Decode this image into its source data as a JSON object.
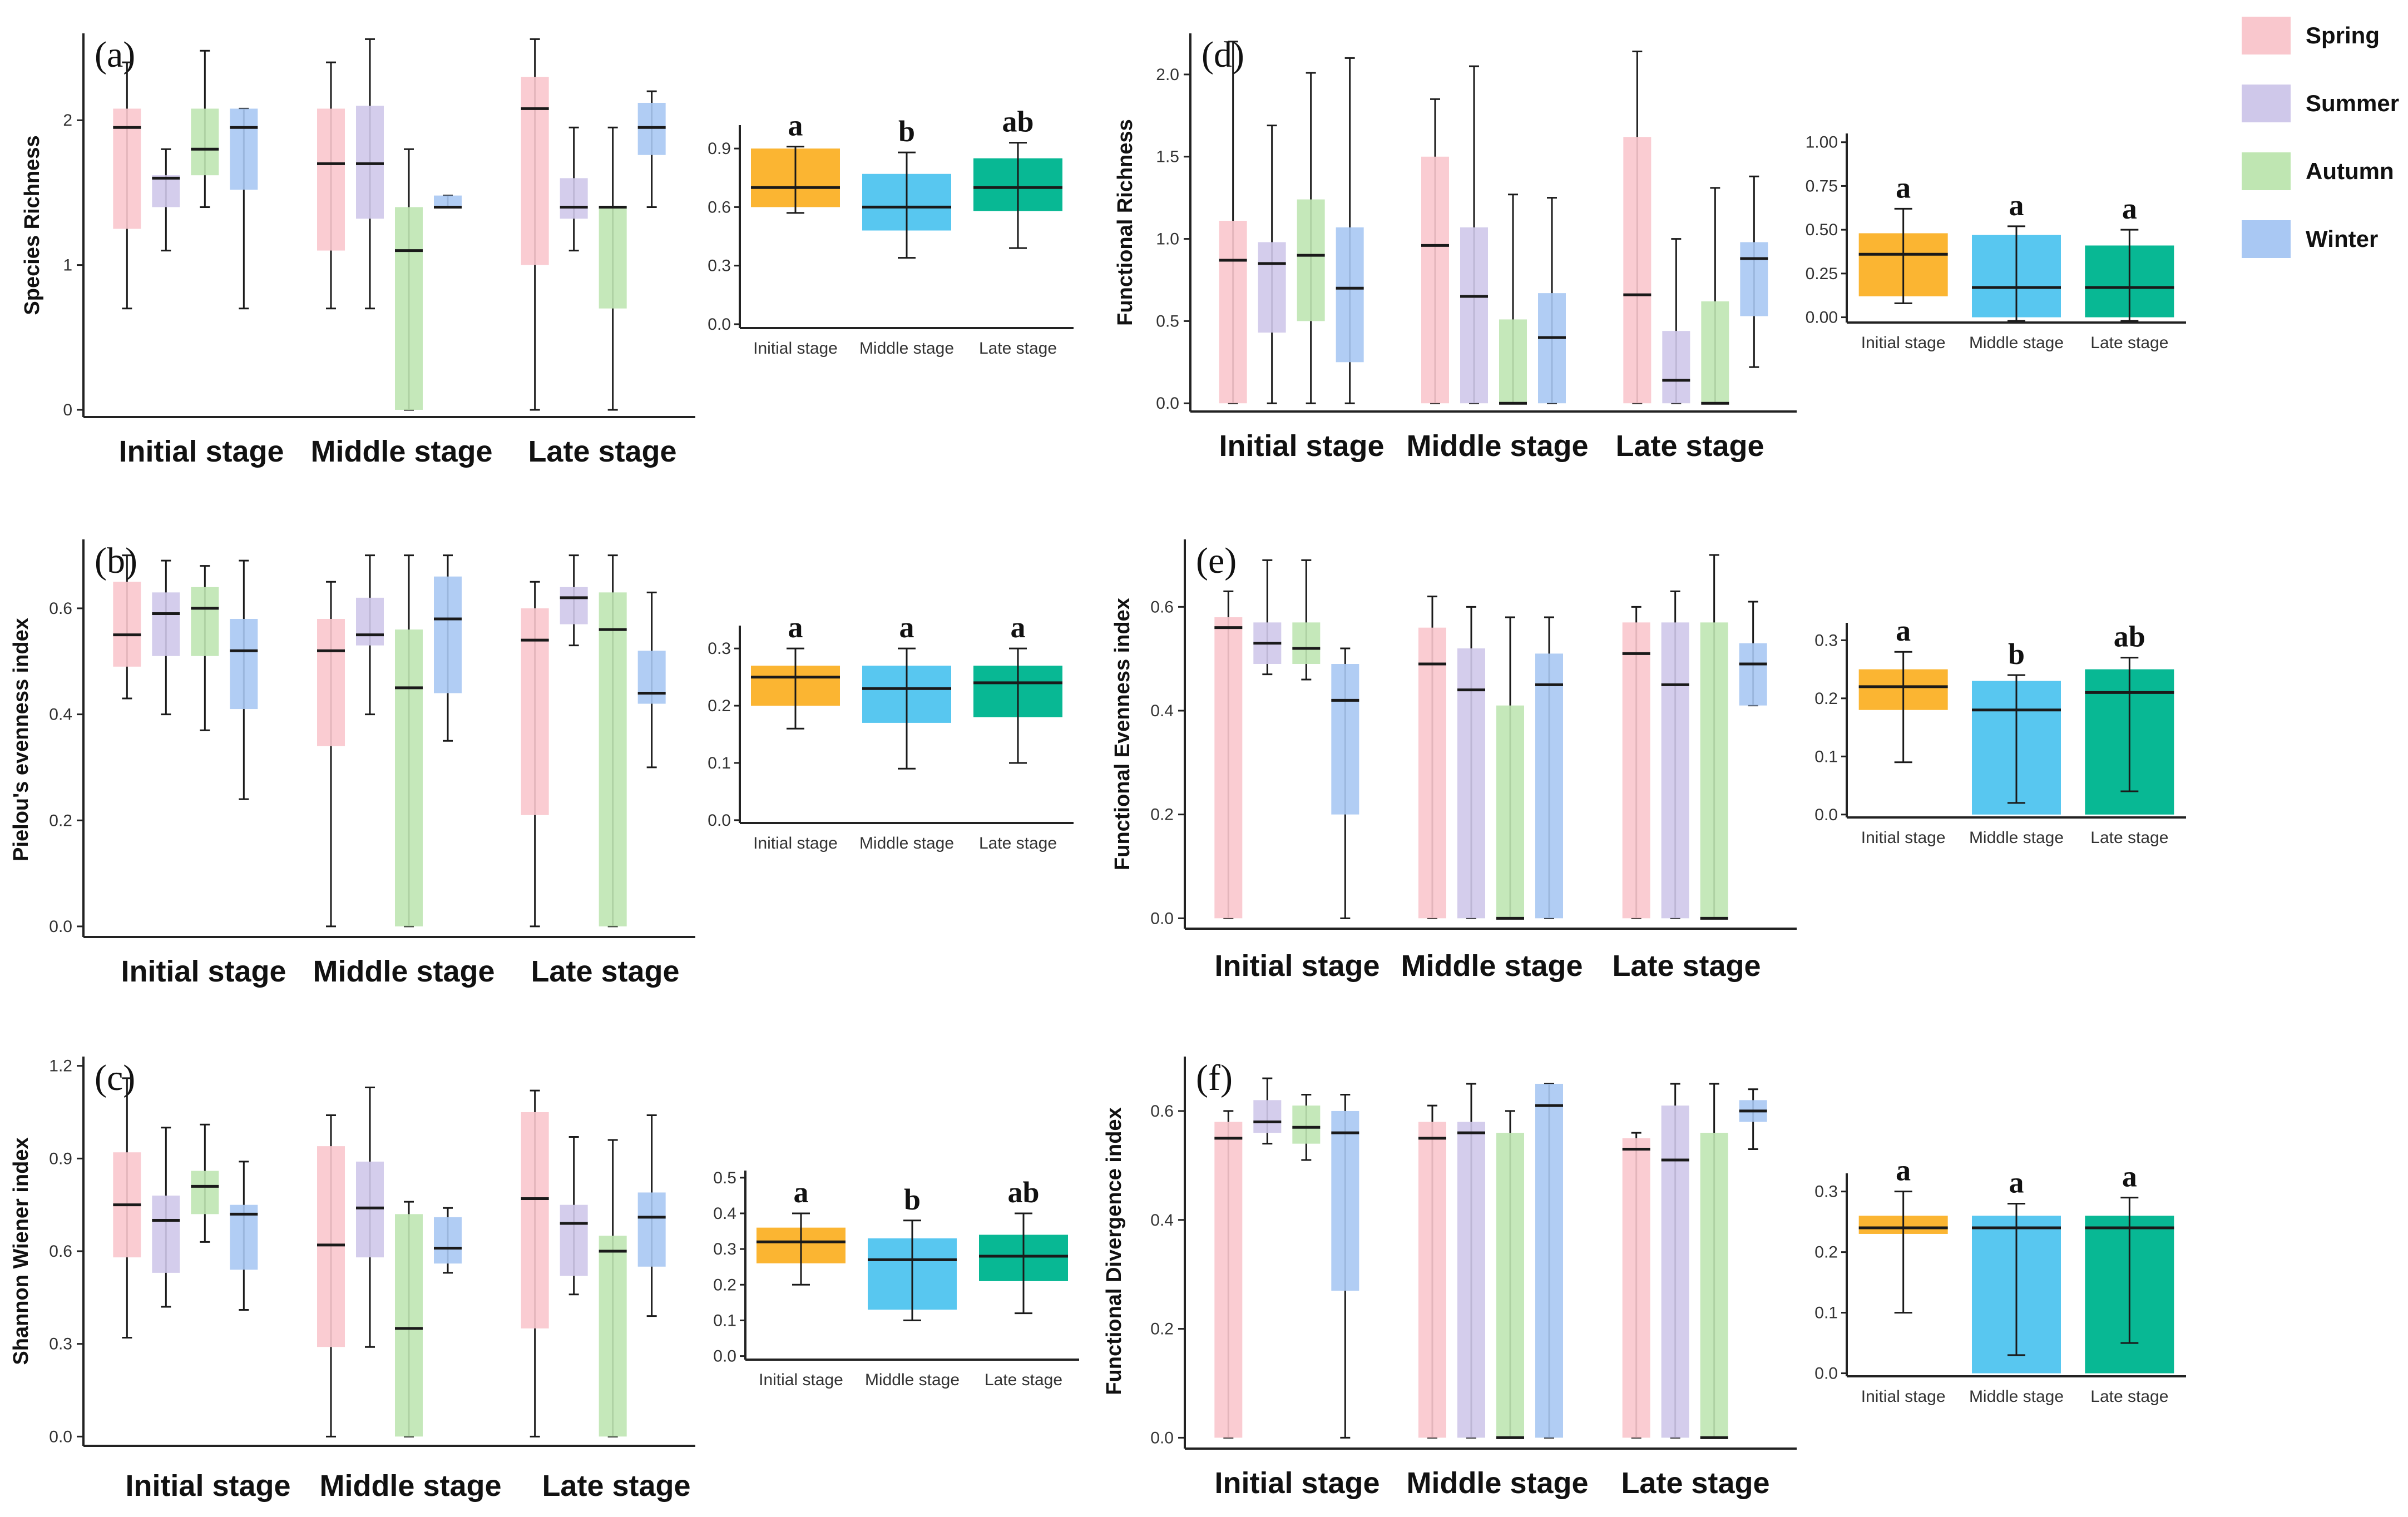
{
  "colors": {
    "seasons": {
      "Spring": "#f9c7cd",
      "Summer": "#cfc8ea",
      "Autumn": "#bfe6b2",
      "Winter": "#a9c8f3"
    },
    "stages": {
      "Initial stage": "#fbb532",
      "Middle stage": "#58c7f0",
      "Late stage": "#08b894"
    }
  },
  "legend": {
    "items": [
      "Spring",
      "Summer",
      "Autumn",
      "Winter"
    ]
  },
  "chart_data": [
    {
      "id": "a",
      "type": "box",
      "letter": "(a)",
      "ylabel": "Species Richness",
      "categories": [
        "Initial stage",
        "Middle stage",
        "Late stage"
      ],
      "series_names": [
        "Spring",
        "Summer",
        "Autumn",
        "Winter"
      ],
      "ylim": [
        -0.05,
        2.6
      ],
      "yticks": [
        0,
        1,
        2
      ],
      "boxes": [
        [
          [
            0.7,
            1.25,
            1.95,
            2.08,
            2.4
          ],
          [
            1.1,
            1.4,
            1.6,
            1.62,
            1.8
          ],
          [
            1.4,
            1.62,
            1.8,
            2.08,
            2.48
          ],
          [
            0.7,
            1.52,
            1.95,
            2.08,
            2.08
          ]
        ],
        [
          [
            0.7,
            1.1,
            1.7,
            2.08,
            2.4
          ],
          [
            0.7,
            1.32,
            1.7,
            2.1,
            2.56
          ],
          [
            0,
            0,
            1.1,
            1.4,
            1.8
          ],
          [
            1.4,
            1.4,
            1.4,
            1.48,
            1.48
          ]
        ],
        [
          [
            0,
            1.0,
            2.08,
            2.3,
            2.56
          ],
          [
            1.1,
            1.32,
            1.4,
            1.6,
            1.95
          ],
          [
            0,
            0.7,
            1.4,
            1.4,
            1.95
          ],
          [
            1.4,
            1.76,
            1.95,
            2.12,
            2.2
          ]
        ]
      ],
      "inset": {
        "categories": [
          "Initial stage",
          "Middle stage",
          "Late stage"
        ],
        "ylim": [
          -0.02,
          1.02
        ],
        "yticks": [
          0.0,
          0.3,
          0.6,
          0.9
        ],
        "ytick_labels": [
          "0.0",
          "0.3",
          "0.6",
          "0.9"
        ],
        "bars": [
          [
            0.57,
            0.6,
            0.7,
            0.9,
            0.91
          ],
          [
            0.34,
            0.48,
            0.6,
            0.77,
            0.88
          ],
          [
            0.39,
            0.58,
            0.7,
            0.85,
            0.93
          ]
        ],
        "letters": [
          "a",
          "b",
          "ab"
        ]
      }
    },
    {
      "id": "b",
      "type": "box",
      "letter": "(b)",
      "ylabel": "Pielou's evenness index",
      "categories": [
        "Initial stage",
        "Middle stage",
        "Late stage"
      ],
      "series_names": [
        "Spring",
        "Summer",
        "Autumn",
        "Winter"
      ],
      "ylim": [
        -0.02,
        0.73
      ],
      "yticks": [
        0.0,
        0.2,
        0.4,
        0.6
      ],
      "ytick_labels": [
        "0.0",
        "0.2",
        "0.4",
        "0.6"
      ],
      "boxes": [
        [
          [
            0.43,
            0.49,
            0.55,
            0.65,
            0.7
          ],
          [
            0.4,
            0.51,
            0.59,
            0.63,
            0.69
          ],
          [
            0.37,
            0.51,
            0.6,
            0.64,
            0.68
          ],
          [
            0.24,
            0.41,
            0.52,
            0.58,
            0.69
          ]
        ],
        [
          [
            0,
            0.34,
            0.52,
            0.58,
            0.65
          ],
          [
            0.4,
            0.53,
            0.55,
            0.62,
            0.7
          ],
          [
            0,
            0,
            0.45,
            0.56,
            0.7
          ],
          [
            0.35,
            0.44,
            0.58,
            0.66,
            0.7
          ]
        ],
        [
          [
            0,
            0.21,
            0.54,
            0.6,
            0.65
          ],
          [
            0.53,
            0.57,
            0.62,
            0.64,
            0.7
          ],
          [
            0,
            0,
            0.56,
            0.63,
            0.7
          ],
          [
            0.3,
            0.42,
            0.44,
            0.52,
            0.63
          ]
        ]
      ],
      "inset": {
        "categories": [
          "Initial stage",
          "Middle stage",
          "Late stage"
        ],
        "ylim": [
          -0.005,
          0.34
        ],
        "yticks": [
          0.0,
          0.1,
          0.2,
          0.3
        ],
        "ytick_labels": [
          "0.0",
          "0.1",
          "0.2",
          "0.3"
        ],
        "bars": [
          [
            0.16,
            0.2,
            0.25,
            0.27,
            0.3
          ],
          [
            0.09,
            0.17,
            0.23,
            0.27,
            0.3
          ],
          [
            0.1,
            0.18,
            0.24,
            0.27,
            0.3
          ]
        ],
        "letters": [
          "a",
          "a",
          "a"
        ]
      }
    },
    {
      "id": "c",
      "type": "box",
      "letter": "(c)",
      "ylabel": "Shannon Wiener index",
      "categories": [
        "Initial stage",
        "Middle stage",
        "Late stage"
      ],
      "series_names": [
        "Spring",
        "Summer",
        "Autumn",
        "Winter"
      ],
      "ylim": [
        -0.03,
        1.23
      ],
      "yticks": [
        0.0,
        0.3,
        0.6,
        0.9,
        1.2
      ],
      "ytick_labels": [
        "0.0",
        "0.3",
        "0.6",
        "0.9",
        "1.2"
      ],
      "boxes": [
        [
          [
            0.32,
            0.58,
            0.75,
            0.92,
            1.16
          ],
          [
            0.42,
            0.53,
            0.7,
            0.78,
            1.0
          ],
          [
            0.63,
            0.72,
            0.81,
            0.86,
            1.01
          ],
          [
            0.41,
            0.54,
            0.72,
            0.75,
            0.89
          ]
        ],
        [
          [
            0,
            0.29,
            0.62,
            0.94,
            1.04
          ],
          [
            0.29,
            0.58,
            0.74,
            0.89,
            1.13
          ],
          [
            0,
            0,
            0.35,
            0.72,
            0.76
          ],
          [
            0.53,
            0.56,
            0.61,
            0.71,
            0.74
          ]
        ],
        [
          [
            0,
            0.35,
            0.77,
            1.05,
            1.12
          ],
          [
            0.46,
            0.52,
            0.69,
            0.75,
            0.97
          ],
          [
            0,
            0,
            0.6,
            0.65,
            0.96
          ],
          [
            0.39,
            0.55,
            0.71,
            0.79,
            1.04
          ]
        ]
      ],
      "inset": {
        "categories": [
          "Initial stage",
          "Middle stage",
          "Late stage"
        ],
        "ylim": [
          -0.01,
          0.52
        ],
        "yticks": [
          0.0,
          0.1,
          0.2,
          0.3,
          0.4,
          0.5
        ],
        "ytick_labels": [
          "0.0",
          "0.1",
          "0.2",
          "0.3",
          "0.4",
          "0.5"
        ],
        "bars": [
          [
            0.2,
            0.26,
            0.32,
            0.36,
            0.4
          ],
          [
            0.1,
            0.13,
            0.27,
            0.33,
            0.38
          ],
          [
            0.12,
            0.21,
            0.28,
            0.34,
            0.4
          ]
        ],
        "letters": [
          "a",
          "b",
          "ab"
        ]
      }
    },
    {
      "id": "d",
      "type": "box",
      "letter": "(d)",
      "ylabel": "Functional Richness",
      "categories": [
        "Initial stage",
        "Middle stage",
        "Late stage"
      ],
      "series_names": [
        "Spring",
        "Summer",
        "Autumn",
        "Winter"
      ],
      "ylim": [
        -0.05,
        2.25
      ],
      "yticks": [
        0.0,
        0.5,
        1.0,
        1.5,
        2.0
      ],
      "ytick_labels": [
        "0.0",
        "0.5",
        "1.0",
        "1.5",
        "2.0"
      ],
      "boxes": [
        [
          [
            0,
            0,
            0.87,
            1.11,
            2.2
          ],
          [
            0,
            0.43,
            0.85,
            0.98,
            1.69
          ],
          [
            0,
            0.5,
            0.9,
            1.24,
            2.01
          ],
          [
            0,
            0.25,
            0.7,
            1.07,
            2.1
          ]
        ],
        [
          [
            0,
            0,
            0.96,
            1.5,
            1.85
          ],
          [
            0,
            0,
            0.65,
            1.07,
            2.05
          ],
          [
            0,
            0,
            0,
            0.51,
            1.27
          ],
          [
            0,
            0,
            0.4,
            0.67,
            1.25
          ]
        ],
        [
          [
            0,
            0,
            0.66,
            1.62,
            2.14
          ],
          [
            0,
            0,
            0.14,
            0.44,
            1.0
          ],
          [
            0,
            0,
            0,
            0.62,
            1.31
          ],
          [
            0.22,
            0.53,
            0.88,
            0.98,
            1.38
          ]
        ]
      ],
      "inset": {
        "categories": [
          "Initial stage",
          "Middle stage",
          "Late stage"
        ],
        "ylim": [
          -0.03,
          1.05
        ],
        "yticks": [
          0.0,
          0.25,
          0.5,
          0.75,
          1.0
        ],
        "ytick_labels": [
          "0.00",
          "0.25",
          "0.50",
          "0.75",
          "1.00"
        ],
        "bars": [
          [
            0.08,
            0.12,
            0.36,
            0.48,
            0.62
          ],
          [
            -0.02,
            0.0,
            0.17,
            0.47,
            0.52
          ],
          [
            -0.02,
            0.0,
            0.17,
            0.41,
            0.5
          ]
        ],
        "letters": [
          "a",
          "a",
          "a"
        ]
      }
    },
    {
      "id": "e",
      "type": "box",
      "letter": "(e)",
      "ylabel": "Functional Evenness index",
      "categories": [
        "Initial stage",
        "Middle stage",
        "Late stage"
      ],
      "series_names": [
        "Spring",
        "Summer",
        "Autumn",
        "Winter"
      ],
      "ylim": [
        -0.02,
        0.73
      ],
      "yticks": [
        0.0,
        0.2,
        0.4,
        0.6
      ],
      "ytick_labels": [
        "0.0",
        "0.2",
        "0.4",
        "0.6"
      ],
      "boxes": [
        [
          [
            0,
            0,
            0.56,
            0.58,
            0.63
          ],
          [
            0.47,
            0.49,
            0.53,
            0.57,
            0.69
          ],
          [
            0.46,
            0.49,
            0.52,
            0.57,
            0.69
          ],
          [
            0,
            0.2,
            0.42,
            0.49,
            0.52
          ]
        ],
        [
          [
            0,
            0,
            0.49,
            0.56,
            0.62
          ],
          [
            0,
            0,
            0.44,
            0.52,
            0.6
          ],
          [
            0,
            0,
            0,
            0.41,
            0.58
          ],
          [
            0,
            0,
            0.45,
            0.51,
            0.58
          ]
        ],
        [
          [
            0,
            0,
            0.51,
            0.57,
            0.6
          ],
          [
            0,
            0,
            0.45,
            0.57,
            0.63
          ],
          [
            0,
            0,
            0,
            0.57,
            0.7
          ],
          [
            0.41,
            0.41,
            0.49,
            0.53,
            0.61
          ]
        ]
      ],
      "inset": {
        "categories": [
          "Initial stage",
          "Middle stage",
          "Late stage"
        ],
        "ylim": [
          -0.005,
          0.33
        ],
        "yticks": [
          0.0,
          0.1,
          0.2,
          0.3
        ],
        "ytick_labels": [
          "0.0",
          "0.1",
          "0.2",
          "0.3"
        ],
        "bars": [
          [
            0.09,
            0.18,
            0.22,
            0.25,
            0.28
          ],
          [
            0.02,
            0.0,
            0.18,
            0.23,
            0.24
          ],
          [
            0.04,
            0.0,
            0.21,
            0.25,
            0.27
          ]
        ],
        "letters": [
          "a",
          "b",
          "ab"
        ]
      }
    },
    {
      "id": "f",
      "type": "box",
      "letter": "(f)",
      "ylabel": "Functional Divergence index",
      "categories": [
        "Initial stage",
        "Middle stage",
        "Late stage"
      ],
      "series_names": [
        "Spring",
        "Summer",
        "Autumn",
        "Winter"
      ],
      "ylim": [
        -0.02,
        0.7
      ],
      "yticks": [
        0.0,
        0.2,
        0.4,
        0.6
      ],
      "ytick_labels": [
        "0.0",
        "0.2",
        "0.4",
        "0.6"
      ],
      "boxes": [
        [
          [
            0,
            0,
            0.55,
            0.58,
            0.6
          ],
          [
            0.54,
            0.56,
            0.58,
            0.62,
            0.66
          ],
          [
            0.51,
            0.54,
            0.57,
            0.61,
            0.63
          ],
          [
            0,
            0.27,
            0.56,
            0.6,
            0.63
          ]
        ],
        [
          [
            0,
            0,
            0.55,
            0.58,
            0.61
          ],
          [
            0,
            0,
            0.56,
            0.58,
            0.65
          ],
          [
            0,
            0,
            0,
            0.56,
            0.6
          ],
          [
            0,
            0,
            0.61,
            0.65,
            0.65
          ]
        ],
        [
          [
            0,
            0,
            0.53,
            0.55,
            0.56
          ],
          [
            0,
            0,
            0.51,
            0.61,
            0.65
          ],
          [
            0,
            0,
            0,
            0.56,
            0.65
          ],
          [
            0.53,
            0.58,
            0.6,
            0.62,
            0.64
          ]
        ]
      ],
      "inset": {
        "categories": [
          "Initial stage",
          "Middle stage",
          "Late stage"
        ],
        "ylim": [
          -0.005,
          0.33
        ],
        "yticks": [
          0.0,
          0.1,
          0.2,
          0.3
        ],
        "ytick_labels": [
          "0.0",
          "0.1",
          "0.2",
          "0.3"
        ],
        "bars": [
          [
            0.1,
            0.23,
            0.24,
            0.26,
            0.3
          ],
          [
            0.03,
            0.0,
            0.24,
            0.26,
            0.28
          ],
          [
            0.05,
            0.0,
            0.24,
            0.26,
            0.29
          ]
        ],
        "letters": [
          "a",
          "a",
          "a"
        ]
      }
    }
  ]
}
